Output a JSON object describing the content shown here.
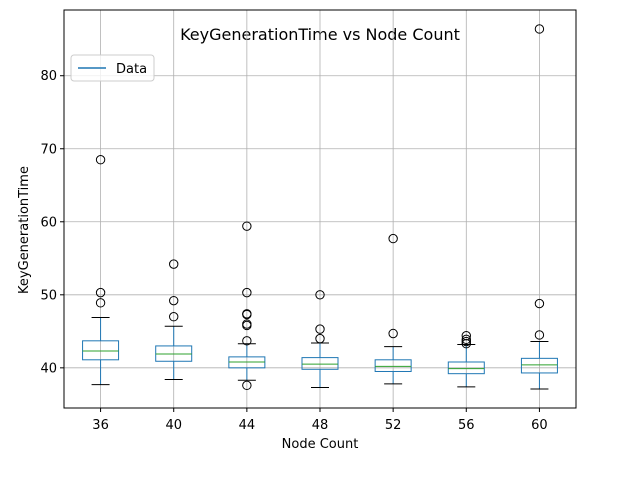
{
  "chart_data": {
    "type": "box",
    "title": "KeyGenerationTime vs Node Count",
    "xlabel": "Node Count",
    "ylabel": "KeyGenerationTime",
    "categories": [
      "36",
      "40",
      "44",
      "48",
      "52",
      "56",
      "60"
    ],
    "ylim": [
      34.5,
      89.0
    ],
    "yticks": [
      40,
      50,
      60,
      70,
      80
    ],
    "grid": true,
    "legend": {
      "position": "top-left",
      "entries": [
        "Data"
      ]
    },
    "colors": {
      "box": "#1f77b4",
      "median": "#2ca02c",
      "whisker": "#000000",
      "grid": "#b0b0b0"
    },
    "boxes": [
      {
        "category": "36",
        "whislo": 37.7,
        "q1": 41.1,
        "median": 42.3,
        "q3": 43.7,
        "whishi": 46.9,
        "fliers": [
          68.5,
          50.3,
          48.9
        ]
      },
      {
        "category": "40",
        "whislo": 38.4,
        "q1": 40.9,
        "median": 41.9,
        "q3": 43.0,
        "whishi": 45.7,
        "fliers": [
          54.2,
          49.2,
          47.0
        ]
      },
      {
        "category": "44",
        "whislo": 38.3,
        "q1": 40.0,
        "median": 40.8,
        "q3": 41.5,
        "whishi": 43.3,
        "fliers": [
          59.4,
          50.3,
          47.4,
          47.3,
          46.0,
          45.8,
          43.7,
          37.6
        ]
      },
      {
        "category": "48",
        "whislo": 37.3,
        "q1": 39.8,
        "median": 40.5,
        "q3": 41.4,
        "whishi": 43.4,
        "fliers": [
          50.0,
          45.3,
          44.0
        ]
      },
      {
        "category": "52",
        "whislo": 37.8,
        "q1": 39.5,
        "median": 40.2,
        "q3": 41.1,
        "whishi": 42.9,
        "fliers": [
          57.7,
          44.7
        ]
      },
      {
        "category": "56",
        "whislo": 37.4,
        "q1": 39.2,
        "median": 39.9,
        "q3": 40.8,
        "whishi": 43.2,
        "fliers": [
          44.4,
          43.9,
          43.6,
          43.3
        ]
      },
      {
        "category": "60",
        "whislo": 37.1,
        "q1": 39.3,
        "median": 40.4,
        "q3": 41.3,
        "whishi": 43.6,
        "fliers": [
          86.4,
          48.8,
          44.5
        ]
      }
    ]
  }
}
